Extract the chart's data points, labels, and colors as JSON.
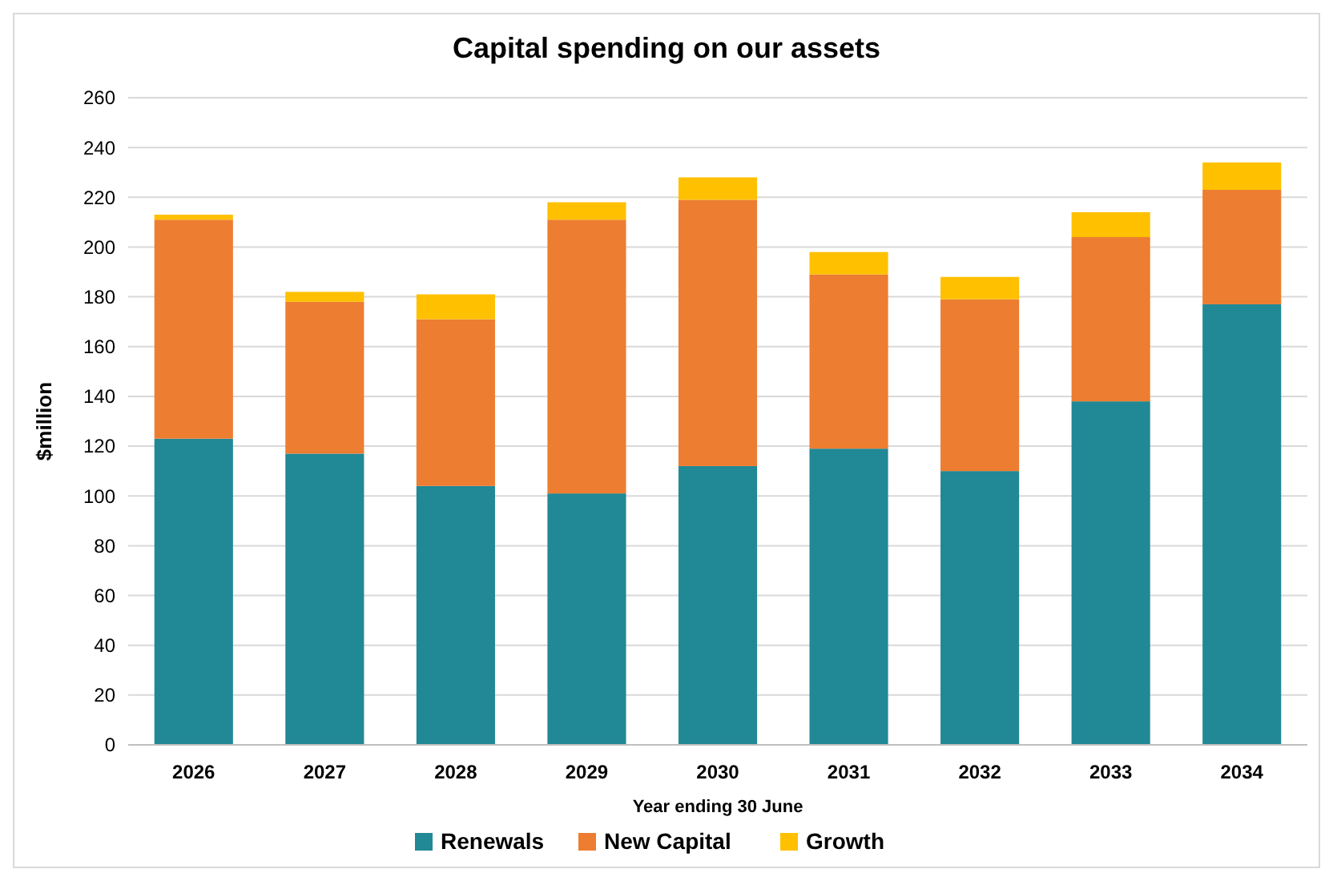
{
  "chart_data": {
    "type": "bar",
    "title": "Capital spending on our assets",
    "xlabel": "Year ending 30 June",
    "ylabel": "$million",
    "categories": [
      "2026",
      "2027",
      "2028",
      "2029",
      "2030",
      "2031",
      "2032",
      "2033",
      "2034"
    ],
    "stacked": true,
    "grid": "y",
    "legend": "bottom",
    "ylim": [
      0,
      260
    ],
    "yticks": [
      0,
      20,
      40,
      60,
      80,
      100,
      120,
      140,
      160,
      180,
      200,
      220,
      240,
      260
    ],
    "series": [
      {
        "name": "Renewals",
        "color": "#218896",
        "values": [
          123,
          117,
          104,
          101,
          112,
          119,
          110,
          138,
          177
        ]
      },
      {
        "name": "New Capital",
        "color": "#ed7d31",
        "values": [
          88,
          61,
          67,
          110,
          107,
          70,
          69,
          66,
          46
        ]
      },
      {
        "name": "Growth",
        "color": "#ffc000",
        "values": [
          2,
          4,
          10,
          7,
          9,
          9,
          9,
          10,
          11
        ]
      }
    ]
  }
}
